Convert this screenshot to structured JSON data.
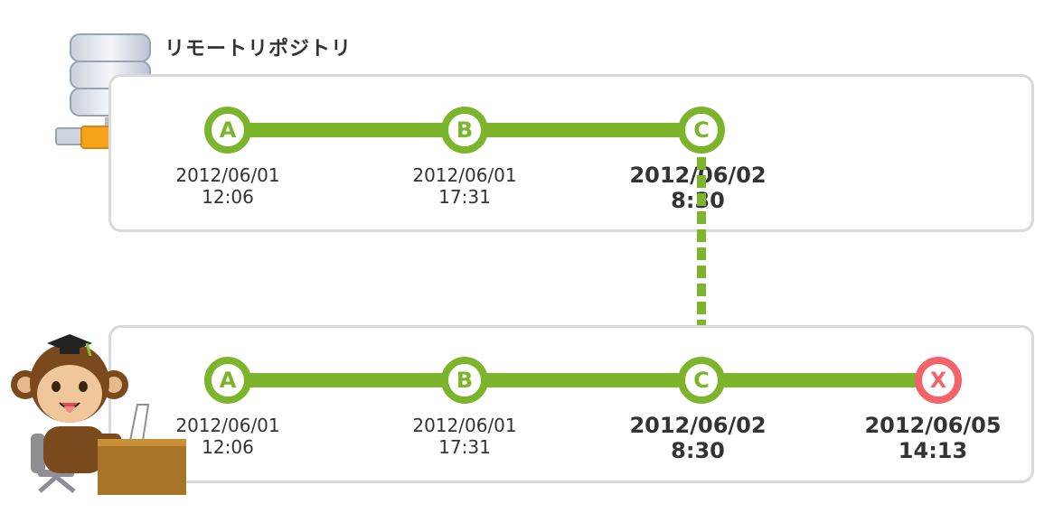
{
  "remote": {
    "title": "リモートリポジトリ",
    "commits": [
      {
        "label": "A",
        "date": "2012/06/01",
        "time": "12:06"
      },
      {
        "label": "B",
        "date": "2012/06/01",
        "time": "17:31"
      },
      {
        "label": "C",
        "date": "2012/06/02",
        "time": "8:30"
      }
    ]
  },
  "local": {
    "commits": [
      {
        "label": "A",
        "date": "2012/06/01",
        "time": "12:06"
      },
      {
        "label": "B",
        "date": "2012/06/01",
        "time": "17:31"
      },
      {
        "label": "C",
        "date": "2012/06/02",
        "time": "8:30"
      },
      {
        "label": "X",
        "date": "2012/06/05",
        "time": "14:13"
      }
    ]
  },
  "colors": {
    "commit_green": "#7cb52c",
    "conflict_red": "#f26469",
    "panel_border": "#d9d9d9"
  },
  "icons": {
    "server": "database-server-icon",
    "user": "monkey-user-at-desk-icon",
    "arrow": "dashed-down-arrow-icon"
  }
}
